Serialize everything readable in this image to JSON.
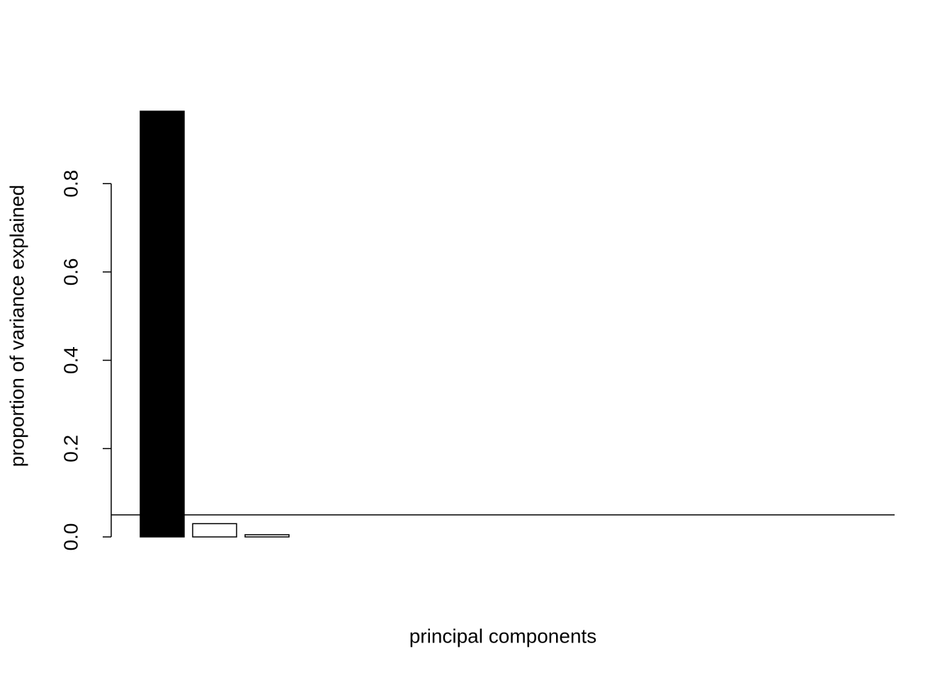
{
  "chart_data": {
    "type": "bar",
    "y_label": "proportion of variance explained",
    "x_label": "principal components",
    "categories": [
      null,
      null,
      null,
      null,
      null,
      null,
      null,
      null,
      null,
      null,
      null,
      null,
      null,
      null
    ],
    "values": [
      0.964,
      0.03,
      0.005,
      0,
      0,
      0,
      0,
      0,
      0,
      0,
      0,
      0,
      0,
      0
    ],
    "colors": [
      "#000000",
      "#ffffff",
      "#ffffff",
      "#ffffff",
      "#ffffff",
      "#ffffff",
      "#ffffff",
      "#ffffff",
      "#ffffff",
      "#ffffff",
      "#ffffff",
      "#ffffff",
      "#ffffff",
      "#ffffff"
    ],
    "ylim": [
      0,
      0.964
    ],
    "yticks": [
      {
        "value": 0,
        "label": "0.0"
      },
      0.2,
      0.4,
      0.6,
      0.8
    ],
    "hline": 0.05,
    "grid": false
  }
}
